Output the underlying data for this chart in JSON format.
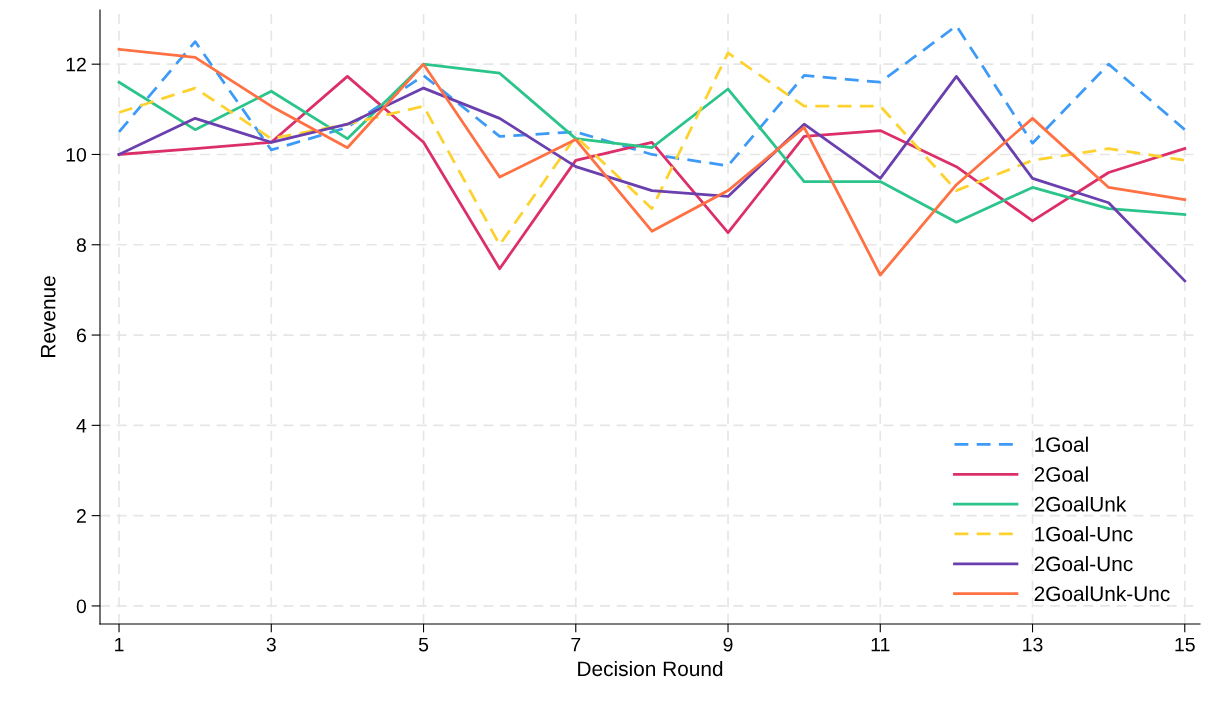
{
  "chart_data": {
    "type": "line",
    "xlabel": "Decision Round",
    "ylabel": "Revenue",
    "x": [
      1,
      2,
      3,
      4,
      5,
      6,
      7,
      8,
      9,
      10,
      11,
      12,
      13,
      14,
      15
    ],
    "xlim": [
      0.75,
      15.2
    ],
    "xticks": [
      1,
      3,
      5,
      7,
      9,
      11,
      13,
      15
    ],
    "ylim": [
      -0.4,
      13.2
    ],
    "yticks": [
      0,
      2,
      4,
      6,
      8,
      10,
      12
    ],
    "grid": true,
    "legend": "bottom right",
    "marker": "none",
    "series": [
      {
        "name": "1Goal",
        "color": "#3d9bf7",
        "line_style": "dashed",
        "values": [
          10.5,
          12.5,
          10.1,
          10.6,
          11.75,
          10.4,
          10.5,
          10.0,
          9.75,
          11.75,
          11.6,
          12.85,
          10.25,
          12.0,
          10.55
        ]
      },
      {
        "name": "2Goal",
        "color": "#dc2f6a",
        "line_style": "solid",
        "values": [
          10.0,
          10.13,
          10.27,
          11.73,
          10.27,
          7.47,
          9.87,
          10.27,
          8.27,
          10.4,
          10.53,
          9.73,
          8.53,
          9.6,
          10.13
        ]
      },
      {
        "name": "2GoalUnk",
        "color": "#2bc48a",
        "line_style": "solid",
        "values": [
          11.6,
          10.55,
          11.4,
          10.35,
          12.0,
          11.8,
          10.35,
          10.15,
          11.45,
          9.4,
          9.4,
          8.5,
          9.27,
          8.8,
          8.67
        ]
      },
      {
        "name": "1Goal-Unc",
        "color": "#fdd22e",
        "line_style": "dashed",
        "values": [
          10.93,
          11.47,
          10.35,
          10.67,
          11.07,
          8.0,
          10.4,
          8.8,
          12.25,
          11.07,
          11.07,
          9.2,
          9.87,
          10.13,
          9.87
        ]
      },
      {
        "name": "2Goal-Unc",
        "color": "#6a3fae",
        "line_style": "solid",
        "values": [
          10.0,
          10.8,
          10.27,
          10.67,
          11.47,
          10.8,
          9.73,
          9.2,
          9.07,
          10.67,
          9.47,
          11.73,
          9.47,
          8.93,
          7.2
        ]
      },
      {
        "name": "2GoalUnk-Unc",
        "color": "#ff7043",
        "line_style": "solid",
        "values": [
          12.33,
          12.15,
          11.07,
          10.15,
          12.0,
          9.5,
          10.33,
          8.3,
          9.2,
          10.6,
          7.33,
          9.33,
          10.8,
          9.27,
          9.0
        ]
      }
    ]
  }
}
